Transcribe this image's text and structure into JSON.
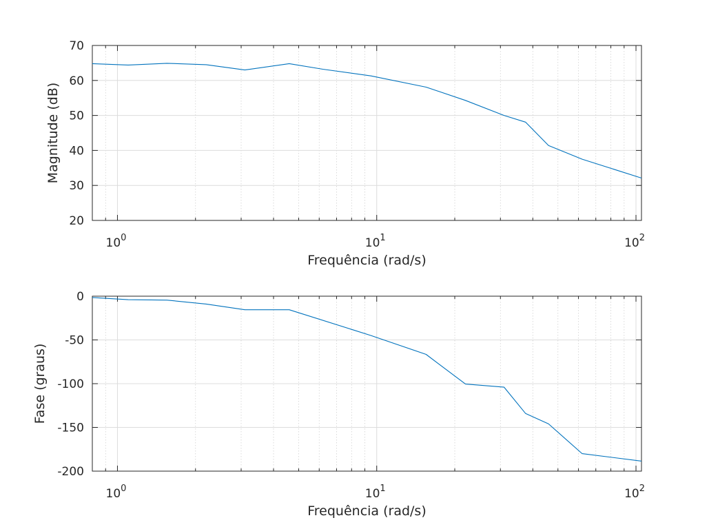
{
  "chart_data": [
    {
      "type": "line",
      "xscale": "log",
      "xlim": [
        0.8,
        105
      ],
      "ylim": [
        20,
        70
      ],
      "grid": true,
      "xlabel": "Frequência (rad/s)",
      "ylabel": "Magnitude (dB)",
      "xticks": [
        {
          "value": 1,
          "base": "10",
          "exp": "0"
        },
        {
          "value": 10,
          "base": "10",
          "exp": "1"
        },
        {
          "value": 100,
          "base": "10",
          "exp": "2"
        }
      ],
      "yticks": [
        20,
        30,
        40,
        50,
        60,
        70
      ],
      "ytick_labels": [
        "20",
        "30",
        "40",
        "50",
        "60",
        "70"
      ],
      "series": [
        {
          "color": "#0072BD",
          "x": [
            0.8,
            1.1,
            1.55,
            2.2,
            3.1,
            4.6,
            6.2,
            9.5,
            15.5,
            22,
            31,
            37.5,
            46,
            62,
            105
          ],
          "y": [
            64.8,
            64.4,
            64.9,
            64.5,
            63.0,
            64.8,
            63.2,
            61.3,
            58.1,
            54.3,
            50.0,
            48.1,
            41.4,
            37.5,
            32.1
          ]
        }
      ]
    },
    {
      "type": "line",
      "xscale": "log",
      "xlim": [
        0.8,
        105
      ],
      "ylim": [
        -200,
        0
      ],
      "grid": true,
      "xlabel": "Frequência (rad/s)",
      "ylabel": "Fase (graus)",
      "xticks": [
        {
          "value": 1,
          "base": "10",
          "exp": "0"
        },
        {
          "value": 10,
          "base": "10",
          "exp": "1"
        },
        {
          "value": 100,
          "base": "10",
          "exp": "2"
        }
      ],
      "yticks": [
        -200,
        -150,
        -100,
        -50,
        0
      ],
      "ytick_labels": [
        "-200",
        "-150",
        "-100",
        "-50",
        "0"
      ],
      "series": [
        {
          "color": "#0072BD",
          "x": [
            0.8,
            1.1,
            1.55,
            2.2,
            3.1,
            4.6,
            9.5,
            15.5,
            22,
            31,
            37.5,
            46,
            62,
            105
          ],
          "y": [
            -1.5,
            -4,
            -4.5,
            -9,
            -15.5,
            -15.5,
            -45,
            -66.5,
            -100.5,
            -104,
            -134,
            -146,
            -180,
            -188.5
          ]
        }
      ]
    }
  ]
}
